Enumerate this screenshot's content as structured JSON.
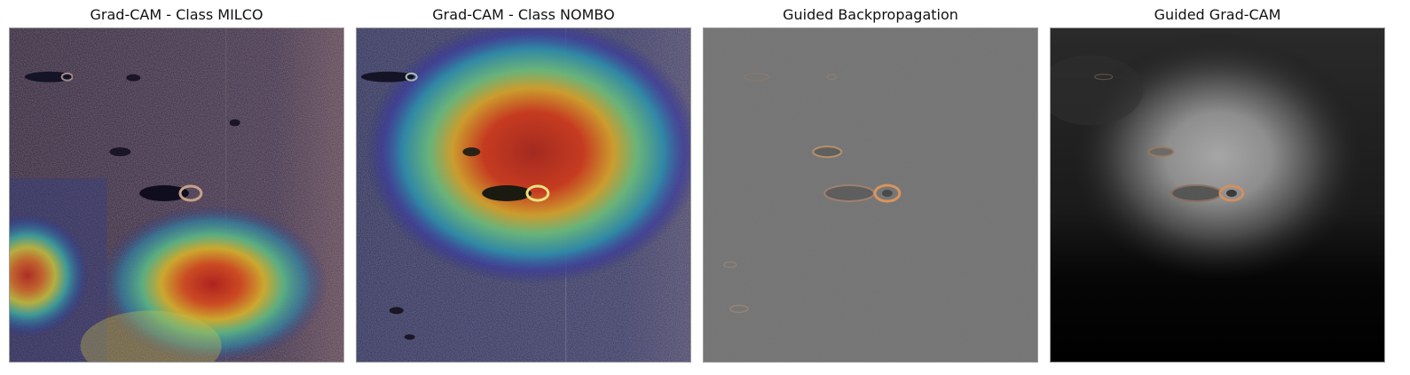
{
  "panels": [
    {
      "title": "Grad-CAM - Class MILCO",
      "image": "gradcam-heatmap-milco",
      "colormap": "jet-overlay-on-sonar"
    },
    {
      "title": "Grad-CAM - Class NOMBO",
      "image": "gradcam-heatmap-nombo",
      "colormap": "jet-overlay-on-sonar"
    },
    {
      "title": "Guided Backpropagation",
      "image": "guided-backprop-gradient-map",
      "colormap": "gray"
    },
    {
      "title": "Guided Grad-CAM",
      "image": "guided-gradcam-map",
      "colormap": "gray"
    }
  ],
  "colors": {
    "sonar_base": "#3a2c4a",
    "heat_hot": "#c0281a",
    "heat_warm": "#e8c030",
    "heat_mid": "#3ab0a0",
    "heat_cool": "#3a3aa0",
    "gradient_gray": "#727272",
    "object_highlight": "#d89a6a"
  }
}
